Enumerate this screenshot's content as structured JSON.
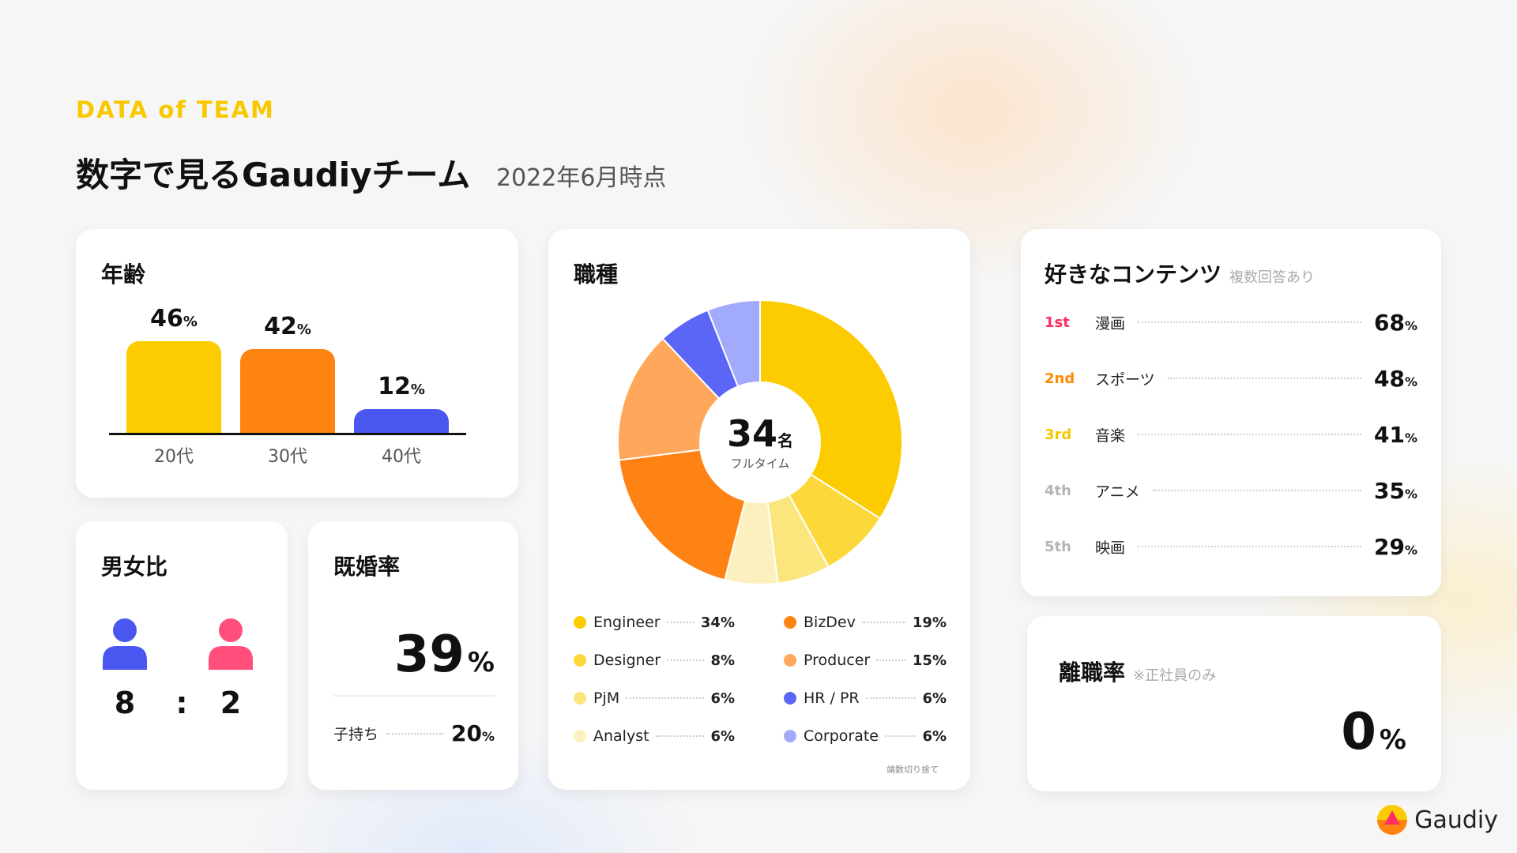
{
  "header": {
    "eyebrow": "DATA of TEAM",
    "title": "数字で見るGaudiyチーム",
    "as_of": "2022年6月時点"
  },
  "age": {
    "title": "年齢",
    "unit": "%"
  },
  "gender": {
    "title": "男女比",
    "male": "8",
    "separator": ":",
    "female": "2",
    "male_color": "#4a56f0",
    "female_color": "#ff4f7a"
  },
  "marriage": {
    "title": "既婚率",
    "rate": "39",
    "unit": "%",
    "kids_label": "子持ち",
    "kids_rate": "20",
    "kids_unit": "%"
  },
  "job": {
    "title": "職種",
    "total": "34",
    "total_unit": "名",
    "total_caption": "フルタイム",
    "footnote": "端数切り捨て"
  },
  "contents": {
    "title": "好きなコンテンツ",
    "note": "複数回答あり",
    "items": [
      {
        "rank": "1st",
        "label": "漫画",
        "value": "68",
        "unit": "%",
        "rank_color": "#ff2e63"
      },
      {
        "rank": "2nd",
        "label": "スポーツ",
        "value": "48",
        "unit": "%",
        "rank_color": "#ff8a00"
      },
      {
        "rank": "3rd",
        "label": "音楽",
        "value": "41",
        "unit": "%",
        "rank_color": "#f7c600"
      },
      {
        "rank": "4th",
        "label": "アニメ",
        "value": "35",
        "unit": "%",
        "rank_color": "#b5b5b5"
      },
      {
        "rank": "5th",
        "label": "映画",
        "value": "29",
        "unit": "%",
        "rank_color": "#b5b5b5"
      }
    ]
  },
  "turnover": {
    "title": "離職率",
    "note": "※正社員のみ",
    "rate": "0",
    "unit": "%"
  },
  "logo": {
    "text": "Gaudiy"
  },
  "chart_data": [
    {
      "type": "bar",
      "title": "年齢",
      "categories": [
        "20代",
        "30代",
        "40代"
      ],
      "values": [
        46,
        42,
        12
      ],
      "value_labels": [
        "46",
        "42",
        "12"
      ],
      "unit": "%",
      "colors": [
        "#fccc00",
        "#ff8310",
        "#4a56f0"
      ]
    },
    {
      "type": "pie",
      "title": "職種",
      "categories": [
        "Engineer",
        "Designer",
        "PjM",
        "Analyst",
        "BizDev",
        "Producer",
        "HR / PR",
        "Corporate"
      ],
      "values": [
        34,
        8,
        6,
        6,
        19,
        15,
        6,
        6
      ],
      "value_labels": [
        "34%",
        "8%",
        "6%",
        "6%",
        "19%",
        "15%",
        "6%",
        "6%"
      ],
      "colors": [
        "#fccc00",
        "#fcd83a",
        "#fbe57d",
        "#fcf0bf",
        "#ff8214",
        "#ffa75a",
        "#5b66f6",
        "#a2aafc"
      ]
    }
  ]
}
